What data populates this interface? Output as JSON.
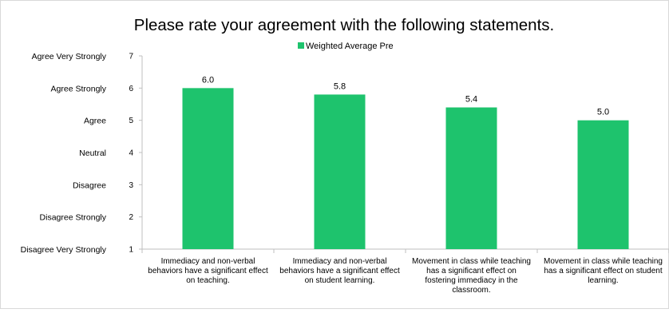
{
  "chart_data": {
    "type": "bar",
    "title": "Please rate your agreement with the following statements.",
    "categories": [
      [
        "Immediacy and non-verbal",
        "behaviors have a significant effect",
        "on teaching."
      ],
      [
        "Immediacy and non-verbal",
        "behaviors have a significant effect",
        "on student learning."
      ],
      [
        "Movement in class while teaching",
        "has a significant effect on",
        "fostering immediacy in the",
        "classroom."
      ],
      [
        "Movement in class while teaching",
        "has a significant effect on student",
        "learning."
      ]
    ],
    "series": [
      {
        "name": "Weighted Average Pre",
        "color": "#1ec36d",
        "values": [
          6.0,
          5.8,
          5.4,
          5.0
        ]
      }
    ],
    "data_labels": [
      "6.0",
      "5.8",
      "5.4",
      "5.0"
    ],
    "ylim": [
      1,
      7
    ],
    "yticks": [
      1,
      2,
      3,
      4,
      5,
      6,
      7
    ],
    "ytick_labels": [
      "1",
      "2",
      "3",
      "4",
      "5",
      "6",
      "7"
    ],
    "scale_labels": [
      "Disagree Very Strongly",
      "Disagree  Strongly",
      "Disagree",
      "Neutral",
      "Agree",
      "Agree Strongly",
      "Agree Very Strongly"
    ],
    "legend_position": "top-center",
    "grid": false
  }
}
